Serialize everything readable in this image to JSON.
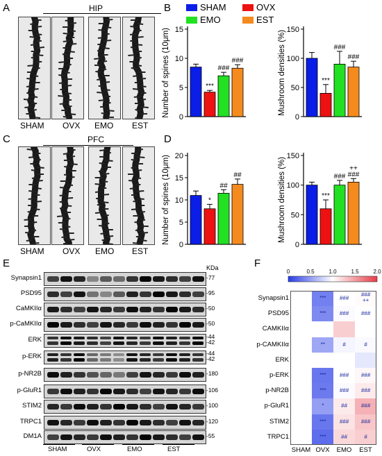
{
  "panels": {
    "A": "A",
    "B": "B",
    "C": "C",
    "D": "D",
    "E": "E",
    "F": "F"
  },
  "panelA": {
    "title": "HIP",
    "groups": [
      "SHAM",
      "OVX",
      "EMO",
      "EST"
    ]
  },
  "panelC": {
    "title": "PFC",
    "groups": [
      "SHAM",
      "OVX",
      "EMO",
      "EST"
    ]
  },
  "legend": [
    {
      "name": "SHAM",
      "color": "#0a1ee8"
    },
    {
      "name": "OVX",
      "color": "#ee1111"
    },
    {
      "name": "EMO",
      "color": "#22e022"
    },
    {
      "name": "EST",
      "color": "#f58a1e"
    }
  ],
  "chart_data": [
    {
      "type": "bar",
      "id": "B-spines",
      "ylabel": "Number of spines (10μm)",
      "ylim": [
        0,
        15
      ],
      "yticks": [
        0,
        5,
        10,
        15
      ],
      "categories": [
        "SHAM",
        "OVX",
        "EMO",
        "EST"
      ],
      "values": [
        8.5,
        4.2,
        7.0,
        8.3
      ],
      "errors": [
        0.5,
        0.3,
        0.6,
        0.6
      ],
      "annotations": [
        "",
        "***",
        "###",
        "###"
      ]
    },
    {
      "type": "bar",
      "id": "B-mushroom",
      "ylabel": "Mushroom densities (%)",
      "ylim": [
        0,
        150
      ],
      "yticks": [
        0,
        50,
        100,
        150
      ],
      "categories": [
        "SHAM",
        "OVX",
        "EMO",
        "EST"
      ],
      "values": [
        100,
        40,
        90,
        85
      ],
      "errors": [
        10,
        15,
        22,
        10
      ],
      "annotations": [
        "",
        "***",
        "###",
        "###"
      ]
    },
    {
      "type": "bar",
      "id": "D-spines",
      "ylabel": "Number of spines (10μm)",
      "ylim": [
        0,
        20
      ],
      "yticks": [
        0,
        5,
        10,
        15,
        20
      ],
      "categories": [
        "SHAM",
        "OVX",
        "EMO",
        "EST"
      ],
      "values": [
        11,
        8,
        11.5,
        13.5
      ],
      "errors": [
        1.0,
        1.0,
        0.8,
        1.2
      ],
      "annotations": [
        "",
        "*",
        "##",
        "##"
      ]
    },
    {
      "type": "bar",
      "id": "D-mushroom",
      "ylabel": "Mushroom densities (%)",
      "ylim": [
        0,
        150
      ],
      "yticks": [
        0,
        50,
        100,
        150
      ],
      "categories": [
        "SHAM",
        "OVX",
        "EMO",
        "EST"
      ],
      "values": [
        100,
        60,
        100,
        105
      ],
      "errors": [
        5,
        15,
        8,
        6
      ],
      "annotations": [
        "",
        "***",
        "###",
        "++\n###"
      ]
    },
    {
      "type": "heatmap",
      "id": "F",
      "xlabels": [
        "SHAM",
        "OVX",
        "EMO",
        "EST"
      ],
      "ylabels": [
        "Synapsin1",
        "PSD95",
        "CAMKIIα",
        "p-CAMKIIα",
        "ERK",
        "p-ERK",
        "p-NR2B",
        "p-GluR1",
        "STIM2",
        "TRPC1"
      ],
      "colorbar": {
        "range": [
          0,
          2
        ],
        "ticks": [
          "0",
          "0.5",
          "1.0",
          "1.5",
          "2.0"
        ]
      },
      "values": [
        [
          1.0,
          0.35,
          1.0,
          1.02
        ],
        [
          1.0,
          0.4,
          0.98,
          1.0
        ],
        [
          1.0,
          1.0,
          1.25,
          1.0
        ],
        [
          1.0,
          0.55,
          0.95,
          0.97
        ],
        [
          1.0,
          1.0,
          1.0,
          0.88
        ],
        [
          1.0,
          0.3,
          1.0,
          1.04
        ],
        [
          1.0,
          0.32,
          0.98,
          1.1
        ],
        [
          1.0,
          0.5,
          1.1,
          1.4
        ],
        [
          1.0,
          0.3,
          1.15,
          1.3
        ],
        [
          1.0,
          0.25,
          1.2,
          1.25
        ]
      ],
      "annotations": [
        [
          "",
          "***",
          "###",
          "###\n++"
        ],
        [
          "",
          "***",
          "###",
          "###"
        ],
        [
          "",
          "",
          "",
          ""
        ],
        [
          "",
          "**",
          "#",
          "#"
        ],
        [
          "",
          "",
          "",
          ""
        ],
        [
          "",
          "***",
          "###",
          "###"
        ],
        [
          "",
          "***",
          "###",
          "###"
        ],
        [
          "",
          "*",
          "##",
          "###"
        ],
        [
          "",
          "***",
          "###",
          "###"
        ],
        [
          "",
          "***",
          "##",
          "#"
        ]
      ]
    }
  ],
  "panelE": {
    "kda_label": "KDa",
    "rows": [
      {
        "label": "Synapsin1",
        "kda": "77"
      },
      {
        "label": "PSD95",
        "kda": "95"
      },
      {
        "label": "CaMKIIα",
        "kda": "50"
      },
      {
        "label": "p-CaMKIIα",
        "kda": "50"
      },
      {
        "label": "ERK",
        "kda": "44\n42"
      },
      {
        "label": "p-ERK",
        "kda": "44\n42"
      },
      {
        "label": "p-NR2B",
        "kda": "180"
      },
      {
        "label": "p-GluR1",
        "kda": "106"
      },
      {
        "label": "STIM2",
        "kda": "100"
      },
      {
        "label": "TRPC1",
        "kda": "120"
      },
      {
        "label": "DM1A",
        "kda": "55"
      }
    ],
    "groups": [
      "SHAM",
      "OVX",
      "EMO",
      "EST"
    ]
  }
}
